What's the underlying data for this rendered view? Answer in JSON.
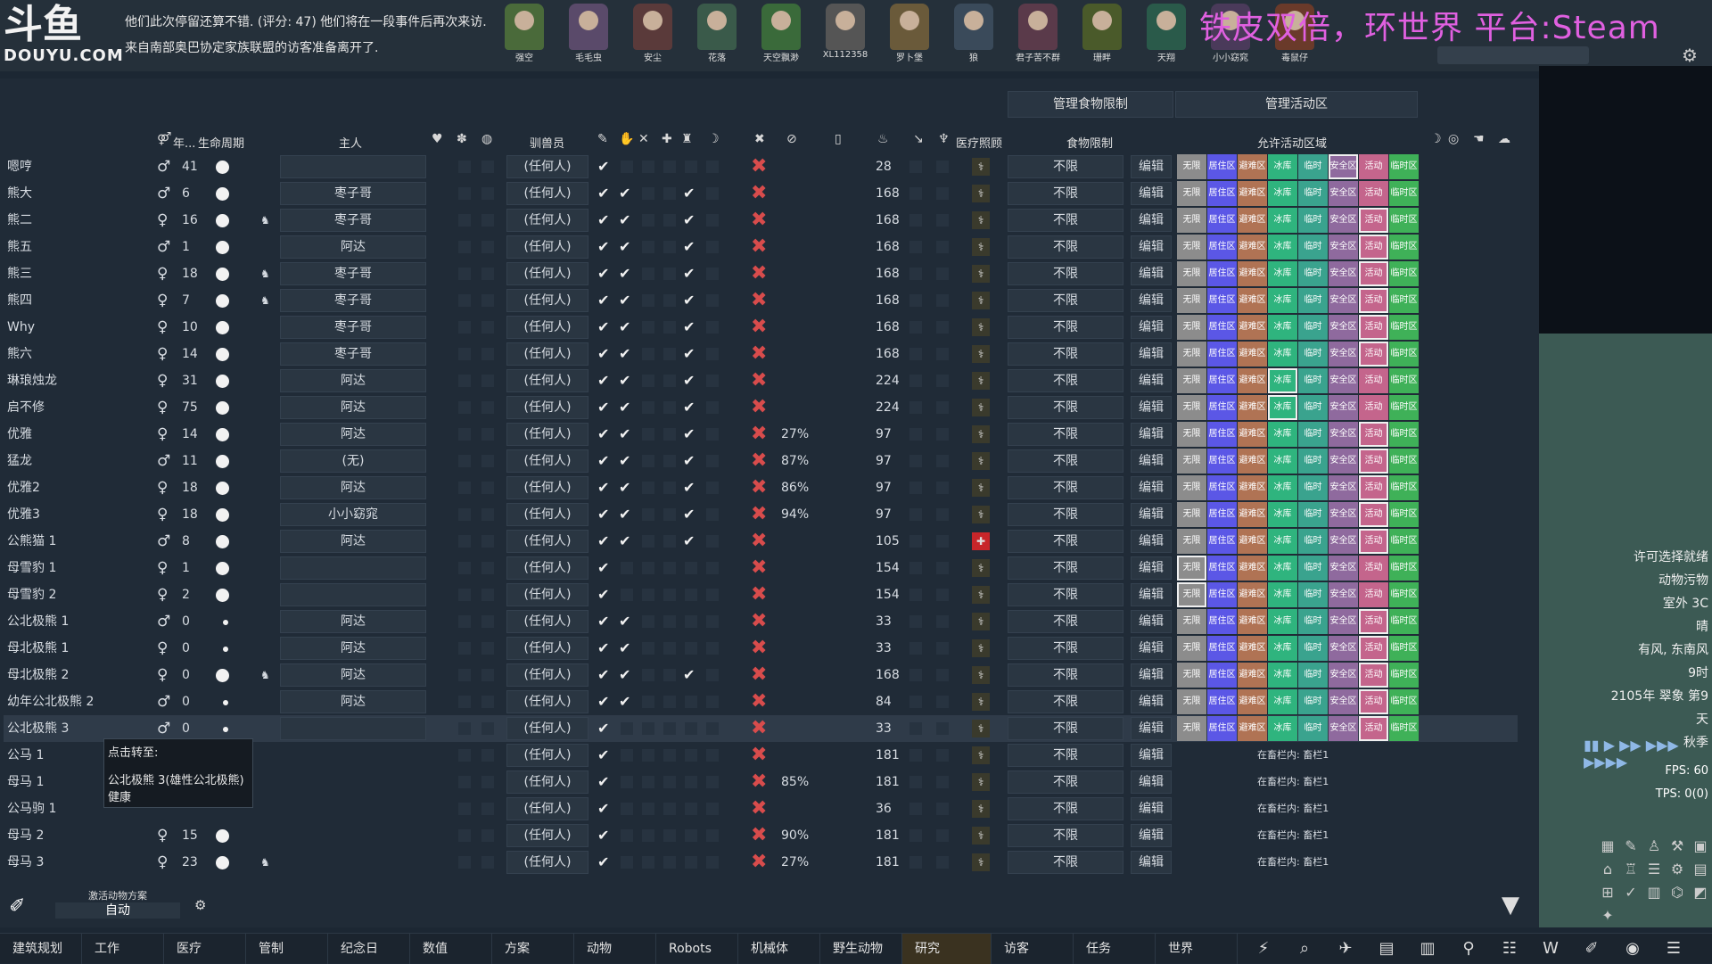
{
  "brand": {
    "line1": "斗鱼",
    "line2": "DOUYU.COM"
  },
  "messages": [
    "他们此次停留还算不错. (评分: 47) 他们将在一段事件后再次来访.",
    "来自南部奥巴协定家族联盟的访客准备离开了."
  ],
  "stream_title": "铁皮双倍，环世界 平台:Steam",
  "colonists": [
    "强空",
    "毛毛虫",
    "安尘",
    "花落",
    "天空飘渺",
    "XL112358",
    "罗卜堡",
    "狼",
    "君子苦不群",
    "珊畔",
    "天翔",
    "小小窈窕",
    "毒鼠仔"
  ],
  "header_buttons": {
    "food": "管理食物限制",
    "area": "管理活动区"
  },
  "columns": {
    "age": "年...",
    "life": "生命周期",
    "master": "主人",
    "trainer": "驯兽员",
    "medical": "医疗照顾",
    "food": "食物限制",
    "area": "允许活动区域"
  },
  "zones": [
    "无限",
    "居住区",
    "避难区",
    "冰库",
    "临时",
    "安全区",
    "活动",
    "临时区"
  ],
  "zone_colors": [
    "#8c8c8c",
    "#5b57e6",
    "#b07354",
    "#2fb47e",
    "#3aa38e",
    "#8f6a9e",
    "#c4658c",
    "#3fb158"
  ],
  "rows": [
    {
      "name": "嗯哼",
      "sex": "♂",
      "age": "41",
      "dot": "big",
      "master": "",
      "trainer": "(任何人)",
      "checks": [
        1,
        0,
        0,
        0,
        0
      ],
      "pct": "",
      "nut": "28",
      "med": "normal",
      "food": "不限",
      "edit": "编辑",
      "zones": true,
      "sel": 5
    },
    {
      "name": "熊大",
      "sex": "♂",
      "age": "6",
      "dot": "big",
      "master": "枣子哥",
      "trainer": "(任何人)",
      "checks": [
        1,
        1,
        0,
        0,
        1
      ],
      "pct": "",
      "nut": "168",
      "med": "normal",
      "food": "不限",
      "edit": "编辑",
      "zones": true
    },
    {
      "name": "熊二",
      "sex": "♀",
      "age": "16",
      "dot": "big",
      "preg": true,
      "master": "枣子哥",
      "trainer": "(任何人)",
      "checks": [
        1,
        1,
        0,
        0,
        1
      ],
      "pct": "",
      "nut": "168",
      "med": "normal",
      "food": "不限",
      "edit": "编辑",
      "zones": true,
      "sel": 6
    },
    {
      "name": "熊五",
      "sex": "♂",
      "age": "1",
      "dot": "big",
      "master": "阿达",
      "trainer": "(任何人)",
      "checks": [
        1,
        1,
        0,
        0,
        1
      ],
      "pct": "",
      "nut": "168",
      "med": "normal",
      "food": "不限",
      "edit": "编辑",
      "zones": true,
      "sel": 6
    },
    {
      "name": "熊三",
      "sex": "♀",
      "age": "18",
      "dot": "big",
      "preg": true,
      "master": "枣子哥",
      "trainer": "(任何人)",
      "checks": [
        1,
        1,
        0,
        0,
        1
      ],
      "pct": "",
      "nut": "168",
      "med": "normal",
      "food": "不限",
      "edit": "编辑",
      "zones": true,
      "sel": 6
    },
    {
      "name": "熊四",
      "sex": "♀",
      "age": "7",
      "dot": "big",
      "preg": true,
      "master": "枣子哥",
      "trainer": "(任何人)",
      "checks": [
        1,
        1,
        0,
        0,
        1
      ],
      "pct": "",
      "nut": "168",
      "med": "normal",
      "food": "不限",
      "edit": "编辑",
      "zones": true,
      "sel": 6
    },
    {
      "name": "Why",
      "sex": "♀",
      "age": "10",
      "dot": "big",
      "master": "枣子哥",
      "trainer": "(任何人)",
      "checks": [
        1,
        1,
        0,
        0,
        1
      ],
      "pct": "",
      "nut": "168",
      "med": "normal",
      "food": "不限",
      "edit": "编辑",
      "zones": true,
      "sel": 6
    },
    {
      "name": "熊六",
      "sex": "♀",
      "age": "14",
      "dot": "big",
      "master": "枣子哥",
      "trainer": "(任何人)",
      "checks": [
        1,
        1,
        0,
        0,
        1
      ],
      "pct": "",
      "nut": "168",
      "med": "normal",
      "food": "不限",
      "edit": "编辑",
      "zones": true,
      "sel": 6
    },
    {
      "name": "琳琅烛龙",
      "sex": "♀",
      "age": "31",
      "dot": "big",
      "master": "阿达",
      "trainer": "(任何人)",
      "checks": [
        1,
        1,
        0,
        0,
        1
      ],
      "pct": "",
      "nut": "224",
      "med": "normal",
      "food": "不限",
      "edit": "编辑",
      "zones": true,
      "sel": 3
    },
    {
      "name": "启不修",
      "sex": "♀",
      "age": "75",
      "dot": "big",
      "master": "阿达",
      "trainer": "(任何人)",
      "checks": [
        1,
        1,
        0,
        0,
        1
      ],
      "pct": "",
      "nut": "224",
      "med": "normal",
      "food": "不限",
      "edit": "编辑",
      "zones": true,
      "sel": 3
    },
    {
      "name": "优雅",
      "sex": "♀",
      "age": "14",
      "dot": "big",
      "master": "阿达",
      "trainer": "(任何人)",
      "checks": [
        1,
        1,
        0,
        0,
        1
      ],
      "pct": "27%",
      "nut": "97",
      "med": "normal",
      "food": "不限",
      "edit": "编辑",
      "zones": true,
      "sel": 6
    },
    {
      "name": "猛龙",
      "sex": "♂",
      "age": "11",
      "dot": "big",
      "master": "(无)",
      "trainer": "(任何人)",
      "checks": [
        1,
        1,
        0,
        0,
        1
      ],
      "pct": "87%",
      "nut": "97",
      "med": "normal",
      "food": "不限",
      "edit": "编辑",
      "zones": true,
      "sel": 6
    },
    {
      "name": "优雅2",
      "sex": "♀",
      "age": "18",
      "dot": "big",
      "master": "阿达",
      "trainer": "(任何人)",
      "checks": [
        1,
        1,
        0,
        0,
        1
      ],
      "pct": "86%",
      "nut": "97",
      "med": "normal",
      "food": "不限",
      "edit": "编辑",
      "zones": true,
      "sel": 6
    },
    {
      "name": "优雅3",
      "sex": "♀",
      "age": "18",
      "dot": "big",
      "master": "小小窈窕",
      "trainer": "(任何人)",
      "checks": [
        1,
        1,
        0,
        0,
        1
      ],
      "pct": "94%",
      "nut": "97",
      "med": "normal",
      "food": "不限",
      "edit": "编辑",
      "zones": true,
      "sel": 6
    },
    {
      "name": "公熊猫 1",
      "sex": "♂",
      "age": "8",
      "dot": "big",
      "master": "阿达",
      "trainer": "(任何人)",
      "checks": [
        1,
        1,
        0,
        0,
        1
      ],
      "pct": "",
      "nut": "105",
      "med": "red",
      "food": "不限",
      "edit": "编辑",
      "zones": true,
      "sel": 6
    },
    {
      "name": "母雪豹 1",
      "sex": "♀",
      "age": "1",
      "dot": "big",
      "master": "",
      "trainer": "(任何人)",
      "checks": [
        1,
        0,
        0,
        0,
        0
      ],
      "pct": "",
      "nut": "154",
      "med": "normal",
      "food": "不限",
      "edit": "编辑",
      "zones": true,
      "sel": 0
    },
    {
      "name": "母雪豹 2",
      "sex": "♀",
      "age": "2",
      "dot": "big",
      "master": "",
      "trainer": "(任何人)",
      "checks": [
        1,
        0,
        0,
        0,
        0
      ],
      "pct": "",
      "nut": "154",
      "med": "normal",
      "food": "不限",
      "edit": "编辑",
      "zones": true,
      "sel": 0
    },
    {
      "name": "公北极熊 1",
      "sex": "♂",
      "age": "0",
      "dot": "small",
      "master": "阿达",
      "trainer": "(任何人)",
      "checks": [
        1,
        1,
        0,
        0,
        0
      ],
      "pct": "",
      "nut": "33",
      "med": "normal",
      "food": "不限",
      "edit": "编辑",
      "zones": true,
      "sel": 6
    },
    {
      "name": "母北极熊 1",
      "sex": "♀",
      "age": "0",
      "dot": "small",
      "master": "阿达",
      "trainer": "(任何人)",
      "checks": [
        1,
        1,
        0,
        0,
        0
      ],
      "pct": "",
      "nut": "33",
      "med": "normal",
      "food": "不限",
      "edit": "编辑",
      "zones": true,
      "sel": 6
    },
    {
      "name": "母北极熊 2",
      "sex": "♀",
      "age": "0",
      "dot": "big",
      "preg": true,
      "master": "阿达",
      "trainer": "(任何人)",
      "checks": [
        1,
        1,
        0,
        0,
        1
      ],
      "pct": "",
      "nut": "168",
      "med": "normal",
      "food": "不限",
      "edit": "编辑",
      "zones": true,
      "sel": 6
    },
    {
      "name": "幼年公北极熊 2",
      "sex": "♂",
      "age": "0",
      "dot": "small",
      "master": "阿达",
      "trainer": "(任何人)",
      "checks": [
        1,
        1,
        0,
        0,
        0
      ],
      "pct": "",
      "nut": "84",
      "med": "normal",
      "food": "不限",
      "edit": "编辑",
      "zones": true,
      "sel": 6
    },
    {
      "name": "公北极熊 3",
      "sex": "♂",
      "age": "0",
      "dot": "small",
      "master": "",
      "trainer": "(任何人)",
      "checks": [
        1,
        0,
        0,
        0,
        0
      ],
      "pct": "",
      "nut": "33",
      "med": "normal",
      "food": "不限",
      "edit": "编辑",
      "zones": true,
      "sel": 6,
      "hl": true
    },
    {
      "name": "公马 1",
      "sex": "",
      "age": "",
      "dot": "none",
      "master": "",
      "trainer": "(任何人)",
      "checks": [
        1,
        0,
        0,
        0,
        0
      ],
      "pct": "",
      "nut": "181",
      "med": "normal",
      "food": "不限",
      "edit": "编辑",
      "zones": false,
      "pen": "在畜栏内: 畜栏1"
    },
    {
      "name": "母马 1",
      "sex": "",
      "age": "",
      "dot": "none",
      "master": "",
      "trainer": "(任何人)",
      "checks": [
        1,
        0,
        0,
        0,
        0
      ],
      "pct": "85%",
      "nut": "181",
      "med": "normal",
      "food": "不限",
      "edit": "编辑",
      "zones": false,
      "pen": "在畜栏内: 畜栏1"
    },
    {
      "name": "公马驹 1",
      "sex": "",
      "age": "",
      "dot": "none",
      "master": "",
      "trainer": "(任何人)",
      "checks": [
        1,
        0,
        0,
        0,
        0
      ],
      "pct": "",
      "nut": "36",
      "med": "normal",
      "food": "不限",
      "edit": "编辑",
      "zones": false,
      "pen": "在畜栏内: 畜栏1"
    },
    {
      "name": "母马 2",
      "sex": "♀",
      "age": "15",
      "dot": "big",
      "master": "",
      "trainer": "(任何人)",
      "checks": [
        1,
        0,
        0,
        0,
        0
      ],
      "pct": "90%",
      "nut": "181",
      "med": "normal",
      "food": "不限",
      "edit": "编辑",
      "zones": false,
      "pen": "在畜栏内: 畜栏1"
    },
    {
      "name": "母马 3",
      "sex": "♀",
      "age": "23",
      "dot": "big",
      "preg": true,
      "master": "",
      "trainer": "(任何人)",
      "checks": [
        1,
        0,
        0,
        0,
        0
      ],
      "pct": "27%",
      "nut": "181",
      "med": "normal",
      "food": "不限",
      "edit": "编辑",
      "zones": false,
      "pen": "在畜栏内: 畜栏1"
    }
  ],
  "tooltip": {
    "title": "点击转至:",
    "line1": "公北极熊 3(雄性公北极熊)",
    "line2": "健康"
  },
  "auto_policy": {
    "label": "激活动物方案",
    "value": "自动"
  },
  "side_info": [
    "许可选择就绪",
    "动物污物",
    "室外 3C",
    "晴",
    "有风, 东南风",
    "9时",
    "2105年 翠象 第9天",
    "秋季"
  ],
  "fps": "FPS: 60",
  "tps": "TPS: 0(0)",
  "tabs": [
    "建筑规划",
    "工作",
    "医疗",
    "管制",
    "纪念日",
    "数值",
    "方案",
    "动物",
    "Robots",
    "机械体",
    "野生动物",
    "研究",
    "访客",
    "任务",
    "世界"
  ],
  "active_tab": "研究"
}
